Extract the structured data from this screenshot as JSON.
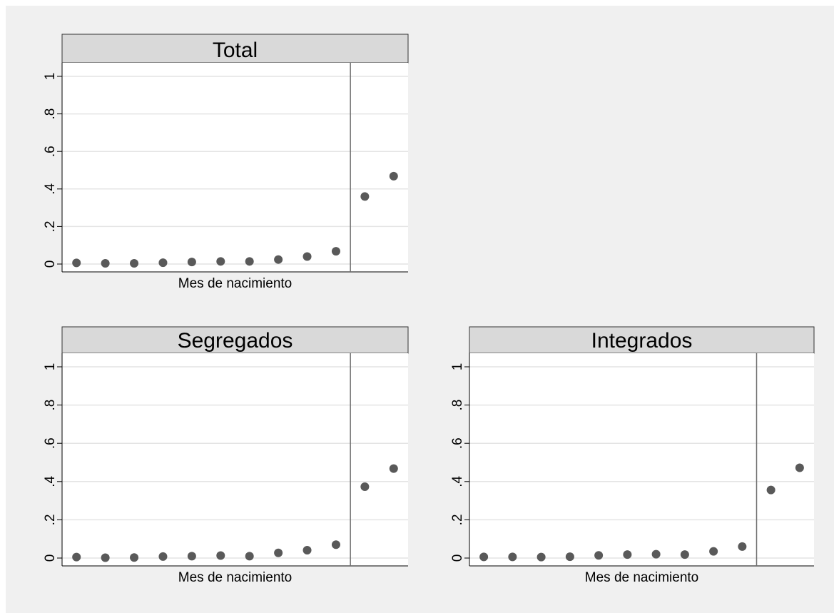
{
  "chart_data": [
    {
      "type": "scatter",
      "title": "Total",
      "xlabel": "Mes de nacimiento",
      "ylabel": "",
      "ylim": [
        0,
        1
      ],
      "yticks": [
        0,
        0.2,
        0.4,
        0.6,
        0.8,
        1
      ],
      "ytick_labels": [
        "0",
        ".2",
        ".4",
        ".6",
        ".8",
        "1"
      ],
      "grid": true,
      "cutoff_x": 10.5,
      "x": [
        1,
        2,
        3,
        4,
        5,
        6,
        7,
        8,
        9,
        10,
        11,
        12
      ],
      "y": [
        0.006,
        0.004,
        0.004,
        0.007,
        0.011,
        0.014,
        0.014,
        0.024,
        0.04,
        0.068,
        0.36,
        0.468
      ],
      "marker_color": "#595959"
    },
    {
      "type": "scatter",
      "title": "Segregados",
      "xlabel": "Mes de nacimiento",
      "ylabel": "",
      "ylim": [
        0,
        1
      ],
      "yticks": [
        0,
        0.2,
        0.4,
        0.6,
        0.8,
        1
      ],
      "ytick_labels": [
        "0",
        ".2",
        ".4",
        ".6",
        ".8",
        "1"
      ],
      "grid": true,
      "cutoff_x": 10.5,
      "x": [
        1,
        2,
        3,
        4,
        5,
        6,
        7,
        8,
        9,
        10,
        11,
        12
      ],
      "y": [
        0.005,
        0.002,
        0.003,
        0.008,
        0.01,
        0.013,
        0.01,
        0.027,
        0.041,
        0.07,
        0.373,
        0.468
      ],
      "marker_color": "#595959"
    },
    {
      "type": "scatter",
      "title": "Integrados",
      "xlabel": "Mes de nacimiento",
      "ylabel": "",
      "ylim": [
        0,
        1
      ],
      "yticks": [
        0,
        0.2,
        0.4,
        0.6,
        0.8,
        1
      ],
      "ytick_labels": [
        "0",
        ".2",
        ".4",
        ".6",
        ".8",
        "1"
      ],
      "grid": true,
      "cutoff_x": 10.5,
      "x": [
        1,
        2,
        3,
        4,
        5,
        6,
        7,
        8,
        9,
        10,
        11,
        12
      ],
      "y": [
        0.006,
        0.006,
        0.005,
        0.007,
        0.014,
        0.018,
        0.02,
        0.018,
        0.035,
        0.06,
        0.356,
        0.472
      ],
      "marker_color": "#595959"
    }
  ]
}
